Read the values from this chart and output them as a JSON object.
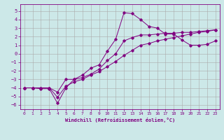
{
  "xlabel": "Windchill (Refroidissement éolien,°C)",
  "background_color": "#cce8e8",
  "grid_color": "#aaaaaa",
  "line_color": "#800080",
  "xlim": [
    -0.5,
    23.5
  ],
  "ylim": [
    -6.5,
    5.8
  ],
  "xticks": [
    0,
    1,
    2,
    3,
    4,
    5,
    6,
    7,
    8,
    9,
    10,
    11,
    12,
    13,
    14,
    15,
    16,
    17,
    18,
    19,
    20,
    21,
    22,
    23
  ],
  "yticks": [
    -6,
    -5,
    -4,
    -3,
    -2,
    -1,
    0,
    1,
    2,
    3,
    4,
    5
  ],
  "series1_x": [
    0,
    1,
    2,
    3,
    4,
    5,
    6,
    7,
    8,
    9,
    10,
    11,
    12,
    13,
    14,
    15,
    16,
    17,
    18,
    19,
    20,
    21,
    22,
    23
  ],
  "series1_y": [
    -4,
    -4,
    -4,
    -4,
    -4.5,
    -3,
    -3,
    -2.5,
    -1.7,
    -1.3,
    0.3,
    1.7,
    4.8,
    4.7,
    4.0,
    3.2,
    3.0,
    2.3,
    2.3,
    1.6,
    1.0,
    1.0,
    1.1,
    1.5
  ],
  "series2_x": [
    0,
    1,
    2,
    3,
    4,
    5,
    6,
    7,
    8,
    9,
    10,
    11,
    12,
    13,
    14,
    15,
    16,
    17,
    18,
    19,
    20,
    21,
    22,
    23
  ],
  "series2_y": [
    -4,
    -4,
    -4.1,
    -4.1,
    -5.8,
    -4,
    -3,
    -2.8,
    -2.4,
    -1.8,
    -0.8,
    0.0,
    1.5,
    1.9,
    2.2,
    2.2,
    2.3,
    2.4,
    2.4,
    2.5,
    2.5,
    2.6,
    2.7,
    2.8
  ],
  "series3_x": [
    0,
    1,
    2,
    3,
    4,
    5,
    6,
    7,
    8,
    9,
    10,
    11,
    12,
    13,
    14,
    15,
    16,
    17,
    18,
    19,
    20,
    21,
    22,
    23
  ],
  "series3_y": [
    -4,
    -4,
    -4,
    -4,
    -5.1,
    -3.8,
    -3.3,
    -3.0,
    -2.5,
    -2.1,
    -1.5,
    -0.9,
    -0.2,
    0.4,
    1.0,
    1.2,
    1.5,
    1.7,
    1.9,
    2.1,
    2.3,
    2.5,
    2.6,
    2.8
  ]
}
